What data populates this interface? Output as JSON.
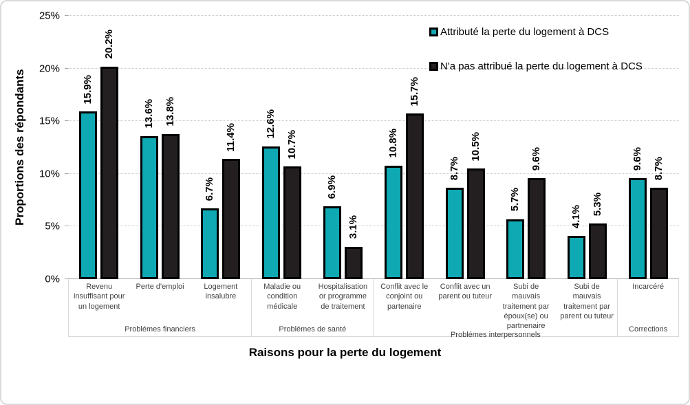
{
  "chart_data": {
    "type": "bar",
    "title": "",
    "xlabel": "Raisons pour la perte du logement",
    "ylabel": "Proportions des répondants",
    "ylim": [
      0,
      25
    ],
    "ytick_step": 5,
    "yticks": [
      "0%",
      "5%",
      "10%",
      "15%",
      "20%",
      "25%"
    ],
    "grid": true,
    "legend_position": "top-right",
    "series": [
      {
        "name": "Attributé la perte du logement à DCS",
        "color": "#0FA9B4"
      },
      {
        "name": "N'a pas attribué la perte du logement à DCS",
        "color": "#231F20"
      }
    ],
    "groups": [
      {
        "label": "Problémes financiers",
        "categories": [
          {
            "label": "Revenu insuffisant pour un logement",
            "values": [
              15.9,
              20.2
            ],
            "labels": [
              "15.9%",
              "20.2%"
            ]
          },
          {
            "label": "Perte d'emploi",
            "values": [
              13.6,
              13.8
            ],
            "labels": [
              "13.6%",
              "13.8%"
            ]
          },
          {
            "label": "Logement insalubre",
            "values": [
              6.7,
              11.4
            ],
            "labels": [
              "6.7%",
              "11.4%"
            ]
          }
        ]
      },
      {
        "label": "Problémes de santé",
        "categories": [
          {
            "label": "Maladie ou condition médicale",
            "values": [
              12.6,
              10.7
            ],
            "labels": [
              "12.6%",
              "10.7%"
            ]
          },
          {
            "label": "Hospitalisation or programme de traitement",
            "values": [
              6.9,
              3.1
            ],
            "labels": [
              "6.9%",
              "3.1%"
            ]
          }
        ]
      },
      {
        "label": "Problémes interpersonnels",
        "categories": [
          {
            "label": "Conflit avec le conjoint ou partenaire",
            "values": [
              10.8,
              15.7
            ],
            "labels": [
              "10.8%",
              "15.7%"
            ]
          },
          {
            "label": "Conflit avec un parent ou tuteur",
            "values": [
              8.7,
              10.5
            ],
            "labels": [
              "8.7%",
              "10.5%"
            ]
          },
          {
            "label": "Subi de mauvais traitement par époux(se) ou partnenaire",
            "values": [
              5.7,
              9.6
            ],
            "labels": [
              "5.7%",
              "9.6%"
            ]
          },
          {
            "label": "Subi de mauvais traitement par parent ou tuteur",
            "values": [
              4.1,
              5.3
            ],
            "labels": [
              "4.1%",
              "5.3%"
            ]
          }
        ]
      },
      {
        "label": "Corrections",
        "categories": [
          {
            "label": "Incarcéré",
            "values": [
              9.6,
              8.7
            ],
            "labels": [
              "9.6%",
              "8.7%"
            ]
          }
        ]
      }
    ],
    "colors": {
      "series_attributed": "#0FA9B4",
      "series_not_attributed": "#231F20",
      "bar_border": "#000000",
      "gridline": "#C8C8C8",
      "axis_line": "#A6A6A6",
      "category_text": "#404040"
    }
  }
}
